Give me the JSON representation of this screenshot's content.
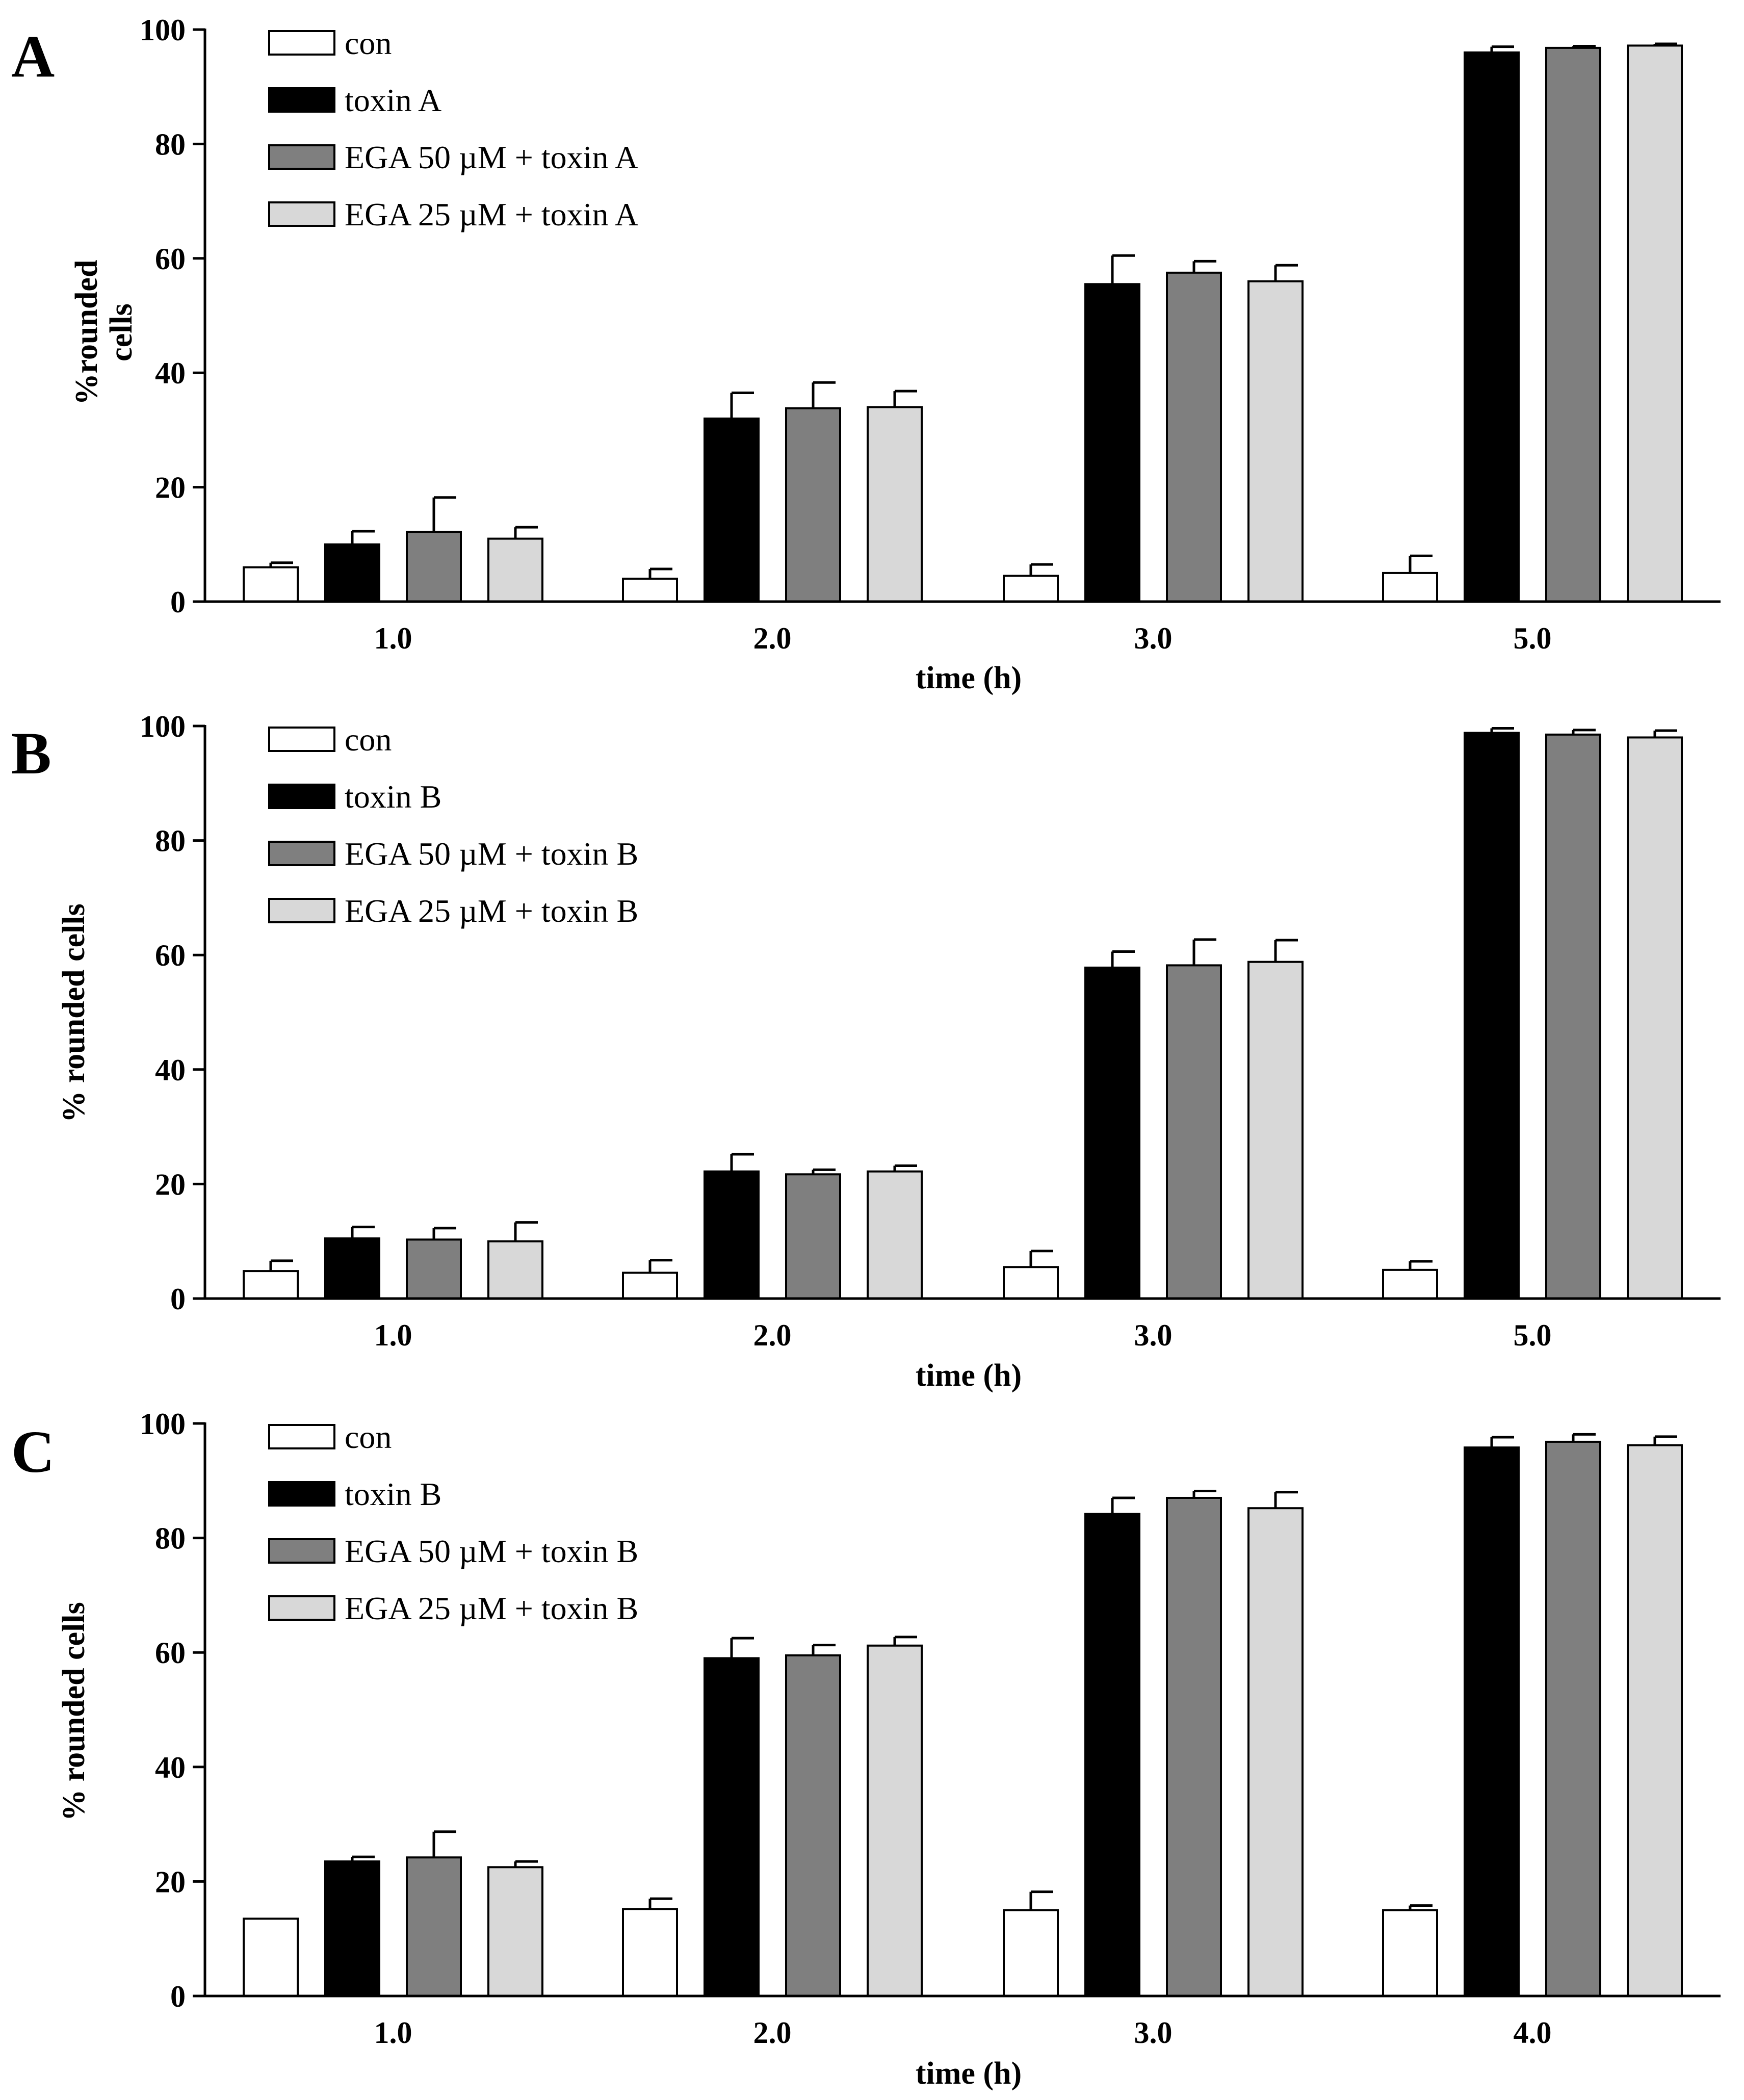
{
  "chart_data": [
    {
      "panel": "A",
      "type": "bar",
      "title": "",
      "xlabel": "time (h)",
      "ylabel_lines": [
        "%rounded",
        "cells"
      ],
      "ylim": [
        0,
        100
      ],
      "yticks": [
        "0",
        "20",
        "40",
        "60",
        "80",
        "100"
      ],
      "categories": [
        "1.0",
        "2.0",
        "3.0",
        "5.0"
      ],
      "legend_position": "top-left",
      "series": [
        {
          "name": "con",
          "color": "#ffffff",
          "values": [
            6,
            4,
            4.5,
            5
          ],
          "errors": [
            0.8,
            1.7,
            2.0,
            3.0
          ]
        },
        {
          "name": "toxin A",
          "color": "#000000",
          "values": [
            10,
            32,
            55.5,
            96
          ],
          "errors": [
            2.3,
            4.5,
            5.0,
            1.0
          ]
        },
        {
          "name": "EGA 50 µM + toxin A",
          "color": "#7f7f7f",
          "values": [
            12.2,
            33.8,
            57.5,
            96.8
          ],
          "errors": [
            6.0,
            4.5,
            2.0,
            0.3
          ]
        },
        {
          "name": "EGA 25 µM + toxin A",
          "color": "#d8d8d8",
          "values": [
            11,
            34,
            56,
            97.2
          ],
          "errors": [
            2.0,
            2.8,
            2.8,
            0.3
          ]
        }
      ]
    },
    {
      "panel": "B",
      "type": "bar",
      "title": "",
      "xlabel": "time (h)",
      "ylabel_lines": [
        "% rounded cells"
      ],
      "ylim": [
        0,
        100
      ],
      "yticks": [
        "0",
        "20",
        "40",
        "60",
        "80",
        "100"
      ],
      "categories": [
        "1.0",
        "2.0",
        "3.0",
        "5.0"
      ],
      "legend_position": "top-left",
      "series": [
        {
          "name": "con",
          "color": "#ffffff",
          "values": [
            4.8,
            4.5,
            5.5,
            5.0
          ],
          "errors": [
            1.8,
            2.2,
            2.8,
            1.5
          ]
        },
        {
          "name": "toxin B",
          "color": "#000000",
          "values": [
            10.5,
            22.2,
            57.8,
            98.8
          ],
          "errors": [
            2.0,
            3.0,
            2.8,
            0.8
          ]
        },
        {
          "name": "EGA 50 µM + toxin B",
          "color": "#7f7f7f",
          "values": [
            10.3,
            21.7,
            58.2,
            98.5
          ],
          "errors": [
            2.0,
            0.8,
            4.5,
            0.8
          ]
        },
        {
          "name": "EGA 25 µM + toxin B",
          "color": "#d8d8d8",
          "values": [
            10.0,
            22.2,
            58.8,
            98.0
          ],
          "errors": [
            3.3,
            1.0,
            3.8,
            1.2
          ]
        }
      ]
    },
    {
      "panel": "C",
      "type": "bar",
      "title": "",
      "xlabel": "time (h)",
      "ylabel_lines": [
        "% rounded cells"
      ],
      "ylim": [
        0,
        100
      ],
      "yticks": [
        "0",
        "20",
        "40",
        "60",
        "80",
        "100"
      ],
      "categories": [
        "1.0",
        "2.0",
        "3.0",
        "4.0"
      ],
      "legend_position": "top-left",
      "series": [
        {
          "name": "con",
          "color": "#ffffff",
          "values": [
            13.5,
            15.2,
            15.0,
            15.0
          ],
          "errors": [
            0,
            1.8,
            3.2,
            0.8
          ]
        },
        {
          "name": "toxin B",
          "color": "#000000",
          "values": [
            23.5,
            59.0,
            84.2,
            95.8
          ],
          "errors": [
            0.8,
            3.5,
            2.8,
            1.8
          ]
        },
        {
          "name": "EGA 50 µM + toxin B",
          "color": "#7f7f7f",
          "values": [
            24.2,
            59.5,
            87.0,
            96.8
          ],
          "errors": [
            4.5,
            1.8,
            1.2,
            1.3
          ]
        },
        {
          "name": "EGA 25 µM + toxin B",
          "color": "#d8d8d8",
          "values": [
            22.5,
            61.2,
            85.2,
            96.2
          ],
          "errors": [
            1.0,
            1.5,
            2.8,
            1.5
          ]
        }
      ]
    }
  ]
}
